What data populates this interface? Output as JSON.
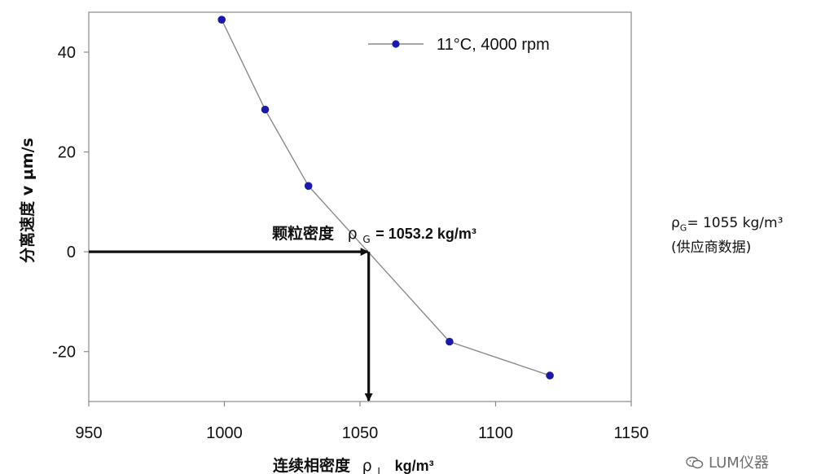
{
  "chart_data": {
    "type": "scatter",
    "series": [
      {
        "name": "11°C, 4000 rpm",
        "color": "#1a1aa8",
        "line_color": "#8a8a8a",
        "x": [
          999,
          1015,
          1031,
          1083,
          1120
        ],
        "y": [
          46.5,
          28.5,
          13.2,
          -18.0,
          -24.8
        ]
      }
    ],
    "xlabel_main": "连续相密度",
    "xlabel_rho": "ρ",
    "xlabel_sub": "L",
    "xlabel_unit": "kg/m³",
    "ylabel": "分离速度 v μm/s",
    "xlim": [
      950,
      1150
    ],
    "ylim": [
      -30,
      48
    ],
    "xticks": [
      950,
      1000,
      1050,
      1100,
      1150
    ],
    "yticks": [
      40,
      20,
      0,
      -20
    ],
    "grid": false,
    "legend_position": "top-right",
    "annotation": {
      "label": "颗粒密度",
      "rho": "ρ",
      "sub": "G",
      "value_text": "= 1053.2 kg/m³",
      "x": 1053.2,
      "y": 0
    }
  },
  "side_note": {
    "rho": "ρ",
    "sub": "G",
    "value_text": "= 1055 kg/m³",
    "source": "(供应商数据)"
  },
  "watermark": {
    "text": "LUM仪器",
    "icon": "wechat-icon"
  }
}
